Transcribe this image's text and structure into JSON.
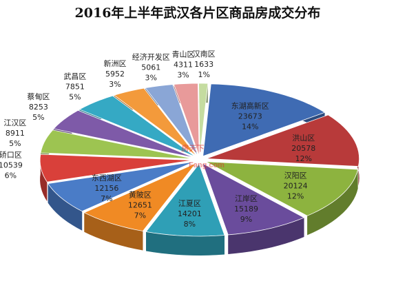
{
  "chart_data": {
    "type": "pie",
    "title": "2016年上半年武汉各片区商品房成交分布",
    "categories": [
      "东湖高新区",
      "洪山区",
      "汉阳区",
      "江岸区",
      "江夏区",
      "黄陂区",
      "东西湖区",
      "硚口区",
      "江汉区",
      "蔡甸区",
      "武昌区",
      "新洲区",
      "经济开发区",
      "青山区",
      "汉南区"
    ],
    "values": [
      23673,
      20578,
      20124,
      15189,
      14201,
      12651,
      12156,
      10539,
      8911,
      8253,
      7851,
      5952,
      5061,
      4311,
      1633
    ],
    "percents": [
      {
        "value": 14,
        "label": "14%"
      },
      {
        "value": 12,
        "label": "12%"
      },
      {
        "value": 12,
        "label": "12%"
      },
      {
        "value": 9,
        "label": "9%"
      },
      {
        "value": 8,
        "label": "8%"
      },
      {
        "value": 7,
        "label": "7%"
      },
      {
        "value": 7,
        "label": "7%"
      },
      {
        "value": 6,
        "label": "6%"
      },
      {
        "value": 5,
        "label": "5%"
      },
      {
        "value": 5,
        "label": "5%"
      },
      {
        "value": 5,
        "label": "5%"
      },
      {
        "value": 3,
        "label": "3%"
      },
      {
        "value": 3,
        "label": "3%"
      },
      {
        "value": 3,
        "label": "3%"
      },
      {
        "value": 1,
        "label": "1%"
      }
    ],
    "colors": [
      "#3f6bb3",
      "#b83a3a",
      "#8db33f",
      "#6a4c9c",
      "#2f9fb6",
      "#f08a24",
      "#4a7cc7",
      "#d9403a",
      "#9dc451",
      "#7e5aa8",
      "#35a9c4",
      "#f39a3b",
      "#8aa6d6",
      "#e89a9a",
      "#c5dca0"
    ],
    "watermark": [
      "房天下",
      "Fang.com"
    ]
  }
}
